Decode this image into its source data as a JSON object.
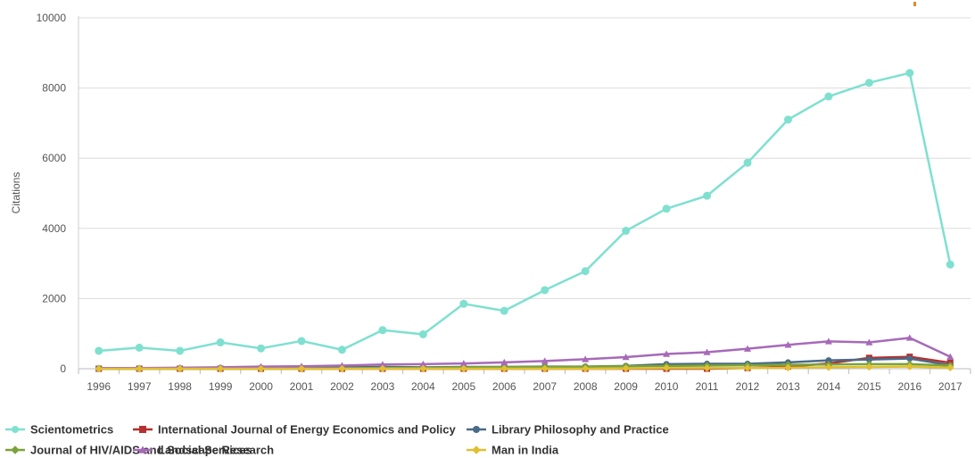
{
  "chart_data": {
    "type": "line",
    "title": "",
    "xlabel": "",
    "ylabel": "Citations",
    "ylim": [
      0,
      10000
    ],
    "yticks": [
      0,
      2000,
      4000,
      6000,
      8000,
      10000
    ],
    "grid": true,
    "legend_position": "bottom",
    "categories": [
      "1996",
      "1997",
      "1998",
      "1999",
      "2000",
      "2001",
      "2002",
      "2003",
      "2004",
      "2005",
      "2006",
      "2007",
      "2008",
      "2009",
      "2010",
      "2011",
      "2012",
      "2013",
      "2014",
      "2015",
      "2016",
      "2017"
    ],
    "series": [
      {
        "name": "Scientometrics",
        "color": "#7fe0d0",
        "marker": "circle",
        "values": [
          510,
          600,
          510,
          750,
          580,
          790,
          540,
          1100,
          980,
          1850,
          1650,
          2240,
          2780,
          3930,
          4560,
          4930,
          5870,
          7100,
          7760,
          8150,
          8430,
          2970
        ]
      },
      {
        "name": "International Journal of Energy Economics and Policy",
        "color": "#b5302e",
        "marker": "square",
        "values": [
          0,
          0,
          0,
          0,
          0,
          0,
          0,
          0,
          0,
          0,
          0,
          0,
          0,
          0,
          0,
          0,
          20,
          60,
          150,
          310,
          340,
          170
        ]
      },
      {
        "name": "Library Philosophy and Practice",
        "color": "#4a6a8a",
        "marker": "circle",
        "values": [
          10,
          10,
          10,
          20,
          30,
          30,
          40,
          50,
          40,
          50,
          50,
          60,
          60,
          80,
          130,
          140,
          140,
          180,
          240,
          260,
          290,
          100
        ]
      },
      {
        "name": "Journal of HIV/AIDS and Social Services",
        "color": "#7aa33a",
        "marker": "diamond",
        "values": [
          0,
          0,
          0,
          0,
          0,
          0,
          10,
          20,
          30,
          40,
          40,
          50,
          60,
          70,
          80,
          90,
          100,
          110,
          120,
          130,
          130,
          90
        ]
      },
      {
        "name": "Landscape Research",
        "color": "#a66ab8",
        "marker": "triangle",
        "values": [
          20,
          20,
          30,
          40,
          60,
          70,
          90,
          120,
          130,
          150,
          180,
          220,
          270,
          330,
          420,
          470,
          570,
          680,
          780,
          750,
          880,
          340
        ]
      },
      {
        "name": "Man in India",
        "color": "#e0c030",
        "marker": "diamond",
        "values": [
          0,
          0,
          0,
          0,
          0,
          0,
          0,
          0,
          0,
          0,
          0,
          0,
          0,
          10,
          20,
          20,
          20,
          30,
          40,
          50,
          60,
          30
        ]
      }
    ]
  }
}
